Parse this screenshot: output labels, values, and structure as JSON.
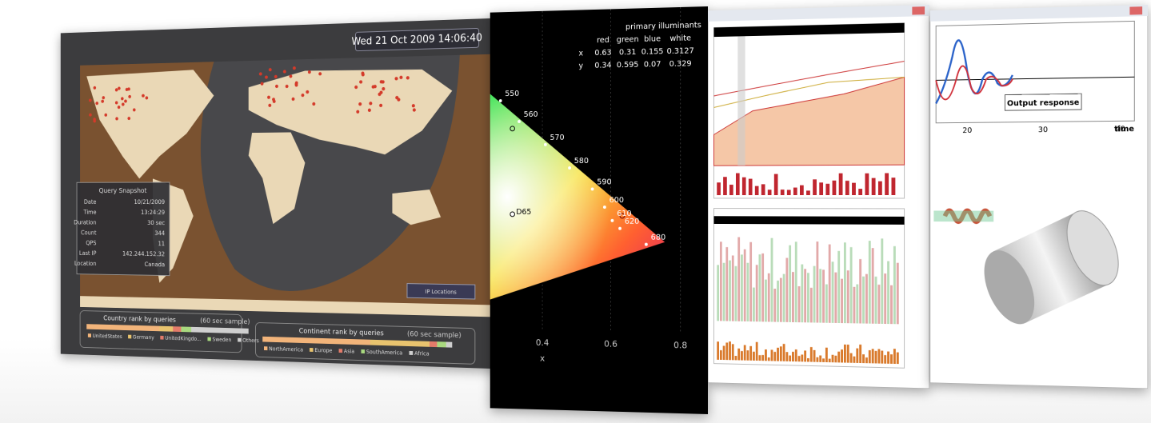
{
  "map_panel": {
    "clock": "Wed 21 Oct 2009 14:06:40",
    "snapshot": {
      "title": "Query Snapshot",
      "rows": [
        [
          "Date",
          "10/21/2009"
        ],
        [
          "Time",
          "13:24:29"
        ],
        [
          "Duration",
          "30 sec"
        ],
        [
          "Count",
          "344"
        ],
        [
          "QPS",
          "11"
        ],
        [
          "Last IP",
          "142.244.152.32"
        ],
        [
          "Location",
          "Canada"
        ]
      ]
    },
    "map_legend": "IP Locations",
    "country_rank": {
      "title": "Country rank by queries",
      "note": "(60 sec sample)",
      "items": [
        "UnitedStates",
        "Germany",
        "UnitedKingdo...",
        "Sweden",
        "Others"
      ]
    },
    "continent_rank": {
      "title": "Continent rank by queries",
      "note": "(60 sec sample)",
      "items": [
        "NorthAmerica",
        "Europe",
        "Asia",
        "SouthAmerica",
        "Africa"
      ]
    }
  },
  "chromaticity_panel": {
    "table_title": "primary illuminants",
    "columns": [
      "red",
      "green",
      "blue",
      "white"
    ],
    "rows": [
      {
        "label": "x",
        "values": [
          "0.63",
          "0.31",
          "0.155",
          "0.3127"
        ]
      },
      {
        "label": "y",
        "values": [
          "0.34",
          "0.595",
          "0.07",
          "0.329"
        ]
      }
    ],
    "wavelengths": [
      "550",
      "560",
      "570",
      "580",
      "590",
      "600",
      "610",
      "620",
      "680"
    ],
    "white_point": "D65",
    "xticks": [
      "0.4",
      "0.6",
      "0.8"
    ],
    "xlabel": "x"
  },
  "response_panel": {
    "legend": "Output response",
    "xticks": [
      "20",
      "30",
      "40"
    ],
    "xlabel": "time"
  }
}
